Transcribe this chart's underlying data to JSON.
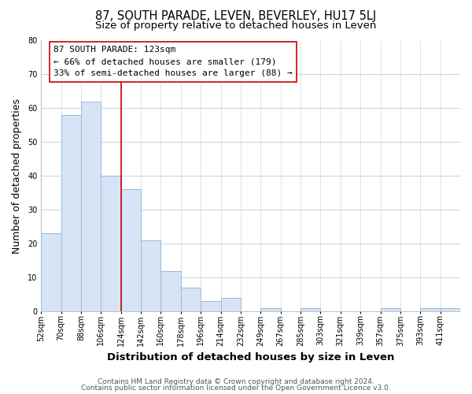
{
  "title": "87, SOUTH PARADE, LEVEN, BEVERLEY, HU17 5LJ",
  "subtitle": "Size of property relative to detached houses in Leven",
  "xlabel": "Distribution of detached houses by size in Leven",
  "ylabel": "Number of detached properties",
  "bin_labels": [
    "52sqm",
    "70sqm",
    "88sqm",
    "106sqm",
    "124sqm",
    "142sqm",
    "160sqm",
    "178sqm",
    "196sqm",
    "214sqm",
    "232sqm",
    "249sqm",
    "267sqm",
    "285sqm",
    "303sqm",
    "321sqm",
    "339sqm",
    "357sqm",
    "375sqm",
    "393sqm",
    "411sqm"
  ],
  "bar_heights": [
    23,
    58,
    62,
    40,
    36,
    21,
    12,
    7,
    3,
    4,
    0,
    1,
    0,
    1,
    0,
    0,
    0,
    1,
    0,
    1,
    1
  ],
  "bar_color": "#d6e4f5",
  "bar_edge_color": "#9abbdc",
  "vline_x": 4,
  "vline_color": "#cc0000",
  "annotation_line1": "87 SOUTH PARADE: 123sqm",
  "annotation_line2": "← 66% of detached houses are smaller (179)",
  "annotation_line3": "33% of semi-detached houses are larger (88) →",
  "ylim": [
    0,
    80
  ],
  "yticks": [
    0,
    10,
    20,
    30,
    40,
    50,
    60,
    70,
    80
  ],
  "footnote1": "Contains HM Land Registry data © Crown copyright and database right 2024.",
  "footnote2": "Contains public sector information licensed under the Open Government Licence v3.0.",
  "bg_color": "#ffffff",
  "grid_color": "#c8d8e8",
  "title_fontsize": 10.5,
  "subtitle_fontsize": 9.5,
  "axis_label_fontsize": 9,
  "tick_fontsize": 7,
  "annotation_fontsize": 8,
  "footnote_fontsize": 6.5
}
